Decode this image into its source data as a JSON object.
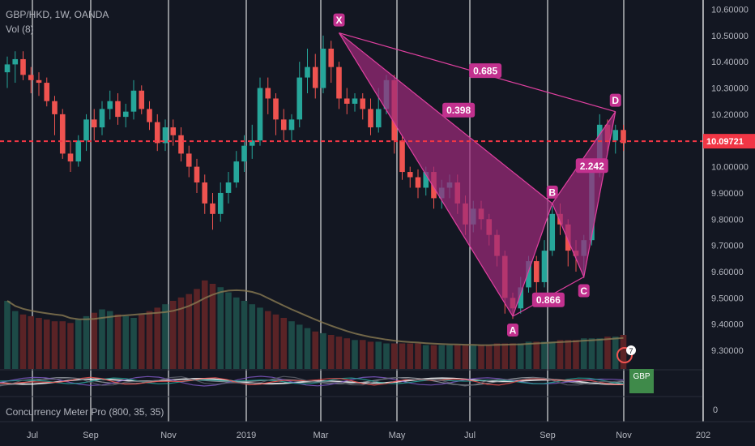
{
  "header": {
    "symbol": "GBP/HKD, 1W, OANDA",
    "volume_label": "Vol (8)",
    "indicator_label": "Concurrency Meter Pro (800, 35, 35)"
  },
  "indicator_badge": "GBP",
  "alert_count": "7",
  "colors": {
    "background": "#131722",
    "up": "#26a69a",
    "down": "#ef5350",
    "pattern_fill": "#9c2a7a",
    "pattern_line": "#e040a0",
    "price_line": "#f23645",
    "grid": "#ffffff"
  },
  "chart_data": {
    "type": "candlestick",
    "price_axis": {
      "ticks": [
        "10.60000",
        "10.50000",
        "10.40000",
        "10.30000",
        "10.20000",
        "10.10000",
        "10.00000",
        "9.90000",
        "9.80000",
        "9.70000",
        "9.60000",
        "9.50000",
        "9.40000",
        "9.30000"
      ],
      "ylim": [
        9.26,
        10.62
      ]
    },
    "indicator_axis": {
      "ticks": [
        "0"
      ]
    },
    "time_axis": {
      "ticks": [
        "Jul",
        "Sep",
        "Nov",
        "2019",
        "Mar",
        "May",
        "Jul",
        "Sep",
        "Nov",
        "202"
      ]
    },
    "current_price": "10.09721",
    "candles": [
      [
        10.36,
        10.39,
        10.3,
        10.42
      ],
      [
        10.39,
        10.41,
        10.32,
        10.44
      ],
      [
        10.41,
        10.35,
        10.33,
        10.44
      ],
      [
        10.35,
        10.33,
        10.28,
        10.38
      ],
      [
        10.33,
        10.32,
        10.27,
        10.36
      ],
      [
        10.32,
        10.25,
        10.23,
        10.34
      ],
      [
        10.25,
        10.2,
        10.12,
        10.27
      ],
      [
        10.2,
        10.05,
        10.03,
        10.22
      ],
      [
        10.05,
        10.02,
        9.98,
        10.1
      ],
      [
        10.02,
        10.1,
        10.0,
        10.12
      ],
      [
        10.1,
        10.18,
        10.06,
        10.2
      ],
      [
        10.18,
        10.15,
        10.1,
        10.22
      ],
      [
        10.15,
        10.22,
        10.12,
        10.25
      ],
      [
        10.22,
        10.25,
        10.18,
        10.29
      ],
      [
        10.25,
        10.19,
        10.16,
        10.28
      ],
      [
        10.19,
        10.21,
        10.15,
        10.24
      ],
      [
        10.21,
        10.29,
        10.18,
        10.33
      ],
      [
        10.29,
        10.22,
        10.2,
        10.31
      ],
      [
        10.22,
        10.17,
        10.14,
        10.25
      ],
      [
        10.17,
        10.09,
        10.06,
        10.2
      ],
      [
        10.09,
        10.15,
        10.06,
        10.18
      ],
      [
        10.15,
        10.12,
        10.08,
        10.18
      ],
      [
        10.12,
        10.05,
        10.02,
        10.15
      ],
      [
        10.05,
        10.0,
        9.96,
        10.08
      ],
      [
        10.0,
        9.94,
        9.9,
        10.03
      ],
      [
        9.94,
        9.86,
        9.82,
        9.97
      ],
      [
        9.86,
        9.82,
        9.76,
        9.9
      ],
      [
        9.82,
        9.9,
        9.79,
        9.94
      ],
      [
        9.9,
        9.94,
        9.86,
        9.98
      ],
      [
        9.94,
        10.02,
        9.92,
        10.06
      ],
      [
        10.02,
        10.08,
        9.98,
        10.12
      ],
      [
        10.08,
        10.1,
        10.03,
        10.16
      ],
      [
        10.1,
        10.3,
        10.08,
        10.34
      ],
      [
        10.3,
        10.26,
        10.2,
        10.34
      ],
      [
        10.26,
        10.18,
        10.12,
        10.28
      ],
      [
        10.18,
        10.14,
        10.1,
        10.22
      ],
      [
        10.14,
        10.18,
        10.1,
        10.2
      ],
      [
        10.18,
        10.34,
        10.15,
        10.4
      ],
      [
        10.34,
        10.38,
        10.28,
        10.45
      ],
      [
        10.38,
        10.3,
        10.26,
        10.43
      ],
      [
        10.3,
        10.45,
        10.28,
        10.5
      ],
      [
        10.45,
        10.38,
        10.32,
        10.48
      ],
      [
        10.38,
        10.26,
        10.22,
        10.4
      ],
      [
        10.26,
        10.24,
        10.2,
        10.3
      ],
      [
        10.24,
        10.26,
        10.21,
        10.28
      ],
      [
        10.26,
        10.22,
        10.18,
        10.28
      ],
      [
        10.22,
        10.15,
        10.12,
        10.26
      ],
      [
        10.15,
        10.22,
        10.13,
        10.3
      ],
      [
        10.22,
        10.33,
        10.2,
        10.35
      ],
      [
        10.33,
        10.1,
        10.05,
        10.35
      ],
      [
        10.1,
        9.98,
        9.95,
        10.12
      ],
      [
        9.98,
        9.96,
        9.92,
        10.0
      ],
      [
        9.96,
        9.92,
        9.88,
        9.99
      ],
      [
        9.92,
        9.98,
        9.89,
        10.0
      ],
      [
        9.98,
        9.88,
        9.84,
        10.0
      ],
      [
        9.88,
        9.92,
        9.84,
        9.95
      ],
      [
        9.92,
        9.94,
        9.88,
        9.97
      ],
      [
        9.94,
        9.86,
        9.82,
        9.97
      ],
      [
        9.86,
        9.78,
        9.74,
        9.89
      ],
      [
        9.78,
        9.84,
        9.75,
        9.87
      ],
      [
        9.84,
        9.8,
        9.76,
        9.87
      ],
      [
        9.8,
        9.74,
        9.7,
        9.82
      ],
      [
        9.74,
        9.66,
        9.62,
        9.76
      ],
      [
        9.66,
        9.5,
        9.44,
        9.68
      ],
      [
        9.5,
        9.46,
        9.42,
        9.52
      ],
      [
        9.46,
        9.54,
        9.44,
        9.58
      ],
      [
        9.54,
        9.64,
        9.52,
        9.66
      ],
      [
        9.64,
        9.56,
        9.52,
        9.66
      ],
      [
        9.56,
        9.68,
        9.54,
        9.72
      ],
      [
        9.68,
        9.82,
        9.66,
        9.85
      ],
      [
        9.82,
        9.78,
        9.74,
        9.86
      ],
      [
        9.78,
        9.68,
        9.62,
        9.8
      ],
      [
        9.68,
        9.66,
        9.6,
        9.72
      ],
      [
        9.66,
        9.72,
        9.58,
        9.74
      ],
      [
        9.72,
        9.98,
        9.7,
        10.0
      ],
      [
        9.98,
        10.16,
        9.96,
        10.2
      ],
      [
        10.16,
        10.1,
        10.06,
        10.18
      ],
      [
        10.1,
        10.14,
        10.05,
        10.16
      ],
      [
        10.14,
        10.09,
        10.06,
        10.16
      ]
    ],
    "volumes": [
      40,
      34,
      32,
      31,
      30,
      29,
      28,
      28,
      27,
      29,
      31,
      33,
      35,
      34,
      32,
      31,
      30,
      32,
      34,
      36,
      38,
      40,
      42,
      44,
      47,
      52,
      50,
      48,
      45,
      42,
      40,
      38,
      36,
      34,
      32,
      30,
      28,
      26,
      24,
      22,
      21,
      20,
      19,
      18,
      17,
      17,
      16,
      16,
      15,
      15,
      15,
      15,
      15,
      14,
      14,
      14,
      14,
      14,
      14,
      14,
      14,
      14,
      15,
      15,
      15,
      15,
      16,
      16,
      16,
      16,
      17,
      17,
      17,
      18,
      18,
      18,
      19,
      19,
      20
    ],
    "harmonic_pattern": {
      "points": [
        {
          "label": "X",
          "value": 10.51
        },
        {
          "label": "A",
          "value": 9.43
        },
        {
          "label": "B",
          "value": 9.86
        },
        {
          "label": "C",
          "value": 9.58
        },
        {
          "label": "D",
          "value": 10.21
        }
      ],
      "ratios": [
        "0.685",
        "0.398",
        "0.866",
        "2.242"
      ]
    }
  }
}
